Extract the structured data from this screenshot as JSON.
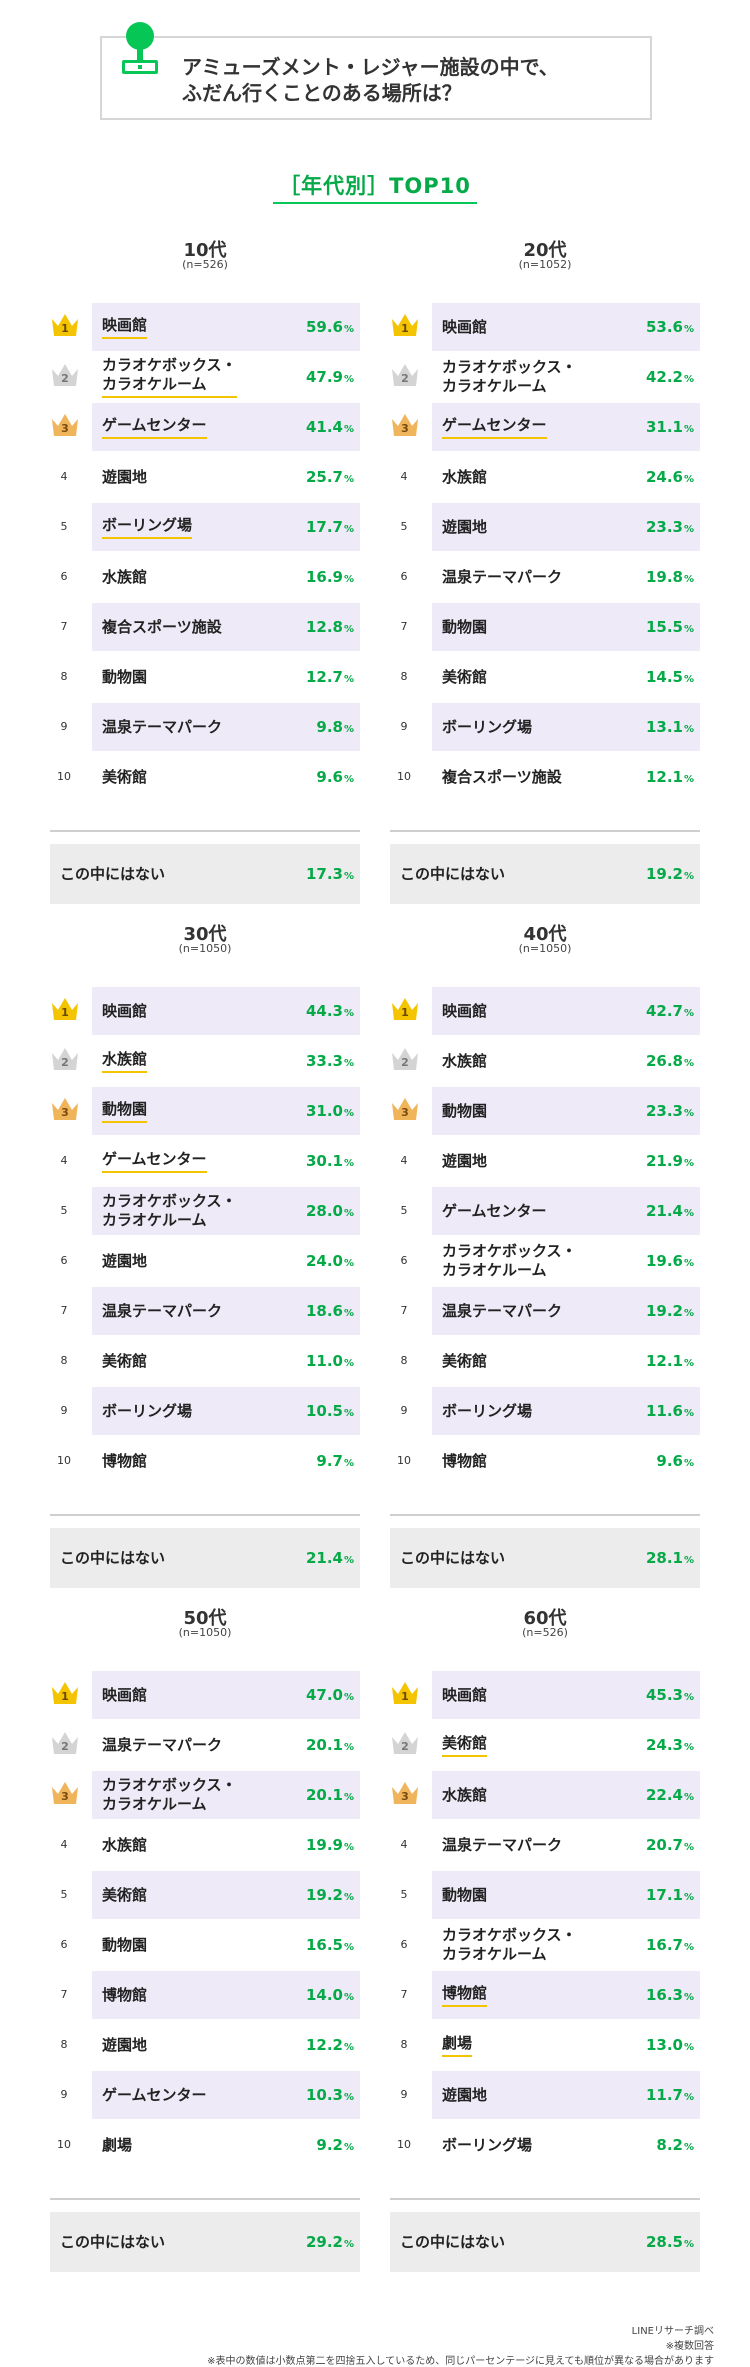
{
  "header": {
    "question": "アミューズメント・レジャー施設の中で、\nふだん行くことのある場所は？"
  },
  "section_title": "［年代別］TOP10",
  "chart_data": [
    {
      "type": "table",
      "age": "10代",
      "n": "(n=526)",
      "items": [
        {
          "rank": 1,
          "label": "映画館",
          "value": 59.6,
          "pct": "59.6",
          "underline": true
        },
        {
          "rank": 2,
          "label": "カラオケボックス・\nカラオケルーム",
          "value": 47.9,
          "pct": "47.9",
          "underline": true
        },
        {
          "rank": 3,
          "label": "ゲームセンター",
          "value": 41.4,
          "pct": "41.4",
          "underline": true
        },
        {
          "rank": 4,
          "label": "遊園地",
          "value": 25.7,
          "pct": "25.7",
          "underline": false
        },
        {
          "rank": 5,
          "label": "ボーリング場",
          "value": 17.7,
          "pct": "17.7",
          "underline": true
        },
        {
          "rank": 6,
          "label": "水族館",
          "value": 16.9,
          "pct": "16.9",
          "underline": false
        },
        {
          "rank": 7,
          "label": "複合スポーツ施設",
          "value": 12.8,
          "pct": "12.8",
          "underline": false
        },
        {
          "rank": 8,
          "label": "動物園",
          "value": 12.7,
          "pct": "12.7",
          "underline": false
        },
        {
          "rank": 9,
          "label": "温泉テーマパーク",
          "value": 9.8,
          "pct": "9.8",
          "underline": false
        },
        {
          "rank": 10,
          "label": "美術館",
          "value": 9.6,
          "pct": "9.6",
          "underline": false
        }
      ],
      "none": {
        "label": "この中にはない",
        "value": 17.3,
        "pct": "17.3"
      }
    },
    {
      "type": "table",
      "age": "20代",
      "n": "(n=1052)",
      "items": [
        {
          "rank": 1,
          "label": "映画館",
          "value": 53.6,
          "pct": "53.6",
          "underline": false
        },
        {
          "rank": 2,
          "label": "カラオケボックス・\nカラオケルーム",
          "value": 42.2,
          "pct": "42.2",
          "underline": false
        },
        {
          "rank": 3,
          "label": "ゲームセンター",
          "value": 31.1,
          "pct": "31.1",
          "underline": true
        },
        {
          "rank": 4,
          "label": "水族館",
          "value": 24.6,
          "pct": "24.6",
          "underline": false
        },
        {
          "rank": 5,
          "label": "遊園地",
          "value": 23.3,
          "pct": "23.3",
          "underline": false
        },
        {
          "rank": 6,
          "label": "温泉テーマパーク",
          "value": 19.8,
          "pct": "19.8",
          "underline": false
        },
        {
          "rank": 7,
          "label": "動物園",
          "value": 15.5,
          "pct": "15.5",
          "underline": false
        },
        {
          "rank": 8,
          "label": "美術館",
          "value": 14.5,
          "pct": "14.5",
          "underline": false
        },
        {
          "rank": 9,
          "label": "ボーリング場",
          "value": 13.1,
          "pct": "13.1",
          "underline": false
        },
        {
          "rank": 10,
          "label": "複合スポーツ施設",
          "value": 12.1,
          "pct": "12.1",
          "underline": false
        }
      ],
      "none": {
        "label": "この中にはない",
        "value": 19.2,
        "pct": "19.2"
      }
    },
    {
      "type": "table",
      "age": "30代",
      "n": "(n=1050)",
      "items": [
        {
          "rank": 1,
          "label": "映画館",
          "value": 44.3,
          "pct": "44.3",
          "underline": false
        },
        {
          "rank": 2,
          "label": "水族館",
          "value": 33.3,
          "pct": "33.3",
          "underline": true
        },
        {
          "rank": 3,
          "label": "動物園",
          "value": 31.0,
          "pct": "31.0",
          "underline": true
        },
        {
          "rank": 4,
          "label": "ゲームセンター",
          "value": 30.1,
          "pct": "30.1",
          "underline": true
        },
        {
          "rank": 5,
          "label": "カラオケボックス・\nカラオケルーム",
          "value": 28.0,
          "pct": "28.0",
          "underline": false
        },
        {
          "rank": 6,
          "label": "遊園地",
          "value": 24.0,
          "pct": "24.0",
          "underline": false
        },
        {
          "rank": 7,
          "label": "温泉テーマパーク",
          "value": 18.6,
          "pct": "18.6",
          "underline": false
        },
        {
          "rank": 8,
          "label": "美術館",
          "value": 11.0,
          "pct": "11.0",
          "underline": false
        },
        {
          "rank": 9,
          "label": "ボーリング場",
          "value": 10.5,
          "pct": "10.5",
          "underline": false
        },
        {
          "rank": 10,
          "label": "博物館",
          "value": 9.7,
          "pct": "9.7",
          "underline": false
        }
      ],
      "none": {
        "label": "この中にはない",
        "value": 21.4,
        "pct": "21.4"
      }
    },
    {
      "type": "table",
      "age": "40代",
      "n": "(n=1050)",
      "items": [
        {
          "rank": 1,
          "label": "映画館",
          "value": 42.7,
          "pct": "42.7",
          "underline": false
        },
        {
          "rank": 2,
          "label": "水族館",
          "value": 26.8,
          "pct": "26.8",
          "underline": false
        },
        {
          "rank": 3,
          "label": "動物園",
          "value": 23.3,
          "pct": "23.3",
          "underline": false
        },
        {
          "rank": 4,
          "label": "遊園地",
          "value": 21.9,
          "pct": "21.9",
          "underline": false
        },
        {
          "rank": 5,
          "label": "ゲームセンター",
          "value": 21.4,
          "pct": "21.4",
          "underline": false
        },
        {
          "rank": 6,
          "label": "カラオケボックス・\nカラオケルーム",
          "value": 19.6,
          "pct": "19.6",
          "underline": false
        },
        {
          "rank": 7,
          "label": "温泉テーマパーク",
          "value": 19.2,
          "pct": "19.2",
          "underline": false
        },
        {
          "rank": 8,
          "label": "美術館",
          "value": 12.1,
          "pct": "12.1",
          "underline": false
        },
        {
          "rank": 9,
          "label": "ボーリング場",
          "value": 11.6,
          "pct": "11.6",
          "underline": false
        },
        {
          "rank": 10,
          "label": "博物館",
          "value": 9.6,
          "pct": "9.6",
          "underline": false
        }
      ],
      "none": {
        "label": "この中にはない",
        "value": 28.1,
        "pct": "28.1"
      }
    },
    {
      "type": "table",
      "age": "50代",
      "n": "(n=1050)",
      "items": [
        {
          "rank": 1,
          "label": "映画館",
          "value": 47.0,
          "pct": "47.0",
          "underline": false
        },
        {
          "rank": 2,
          "label": "温泉テーマパーク",
          "value": 20.1,
          "pct": "20.1",
          "underline": false
        },
        {
          "rank": 3,
          "label": "カラオケボックス・\nカラオケルーム",
          "value": 20.1,
          "pct": "20.1",
          "underline": false
        },
        {
          "rank": 4,
          "label": "水族館",
          "value": 19.9,
          "pct": "19.9",
          "underline": false
        },
        {
          "rank": 5,
          "label": "美術館",
          "value": 19.2,
          "pct": "19.2",
          "underline": false
        },
        {
          "rank": 6,
          "label": "動物園",
          "value": 16.5,
          "pct": "16.5",
          "underline": false
        },
        {
          "rank": 7,
          "label": "博物館",
          "value": 14.0,
          "pct": "14.0",
          "underline": false
        },
        {
          "rank": 8,
          "label": "遊園地",
          "value": 12.2,
          "pct": "12.2",
          "underline": false
        },
        {
          "rank": 9,
          "label": "ゲームセンター",
          "value": 10.3,
          "pct": "10.3",
          "underline": false
        },
        {
          "rank": 10,
          "label": "劇場",
          "value": 9.2,
          "pct": "9.2",
          "underline": false
        }
      ],
      "none": {
        "label": "この中にはない",
        "value": 29.2,
        "pct": "29.2"
      }
    },
    {
      "type": "table",
      "age": "60代",
      "n": "(n=526)",
      "items": [
        {
          "rank": 1,
          "label": "映画館",
          "value": 45.3,
          "pct": "45.3",
          "underline": false
        },
        {
          "rank": 2,
          "label": "美術館",
          "value": 24.3,
          "pct": "24.3",
          "underline": true
        },
        {
          "rank": 3,
          "label": "水族館",
          "value": 22.4,
          "pct": "22.4",
          "underline": false
        },
        {
          "rank": 4,
          "label": "温泉テーマパーク",
          "value": 20.7,
          "pct": "20.7",
          "underline": false
        },
        {
          "rank": 5,
          "label": "動物園",
          "value": 17.1,
          "pct": "17.1",
          "underline": false
        },
        {
          "rank": 6,
          "label": "カラオケボックス・\nカラオケルーム",
          "value": 16.7,
          "pct": "16.7",
          "underline": false
        },
        {
          "rank": 7,
          "label": "博物館",
          "value": 16.3,
          "pct": "16.3",
          "underline": true
        },
        {
          "rank": 8,
          "label": "劇場",
          "value": 13.0,
          "pct": "13.0",
          "underline": true
        },
        {
          "rank": 9,
          "label": "遊園地",
          "value": 11.7,
          "pct": "11.7",
          "underline": false
        },
        {
          "rank": 10,
          "label": "ボーリング場",
          "value": 8.2,
          "pct": "8.2",
          "underline": false
        }
      ],
      "none": {
        "label": "この中にはない",
        "value": 28.5,
        "pct": "28.5"
      }
    }
  ],
  "colors": {
    "green": "#06a948",
    "shade": "#eeeaf7",
    "gold": "#f5c400",
    "silver": "#d4d4d4",
    "bronze": "#f0b45a"
  },
  "percent_sign": "%",
  "footer": {
    "source": "LINEリサーチ調べ",
    "multi": "※複数回答",
    "note": "※表中の数値は小数点第二を四捨五入しているため、同じパーセンテージに見えても順位が異なる場合があります"
  }
}
